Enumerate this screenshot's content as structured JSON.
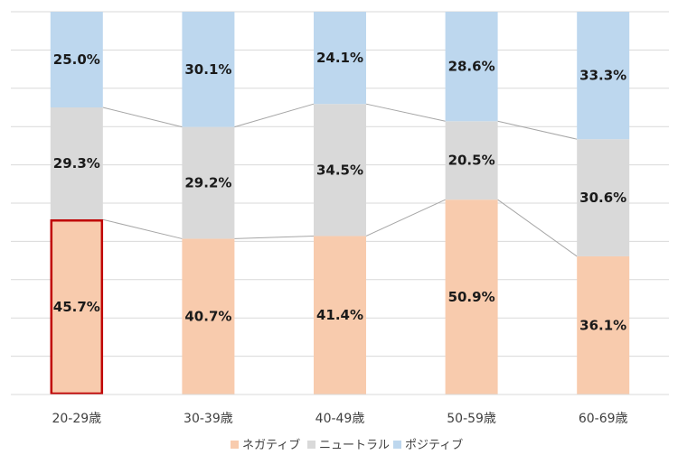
{
  "chart_data": {
    "type": "bar",
    "stacked": true,
    "percent": true,
    "categories": [
      "20-29歳",
      "30-39歳",
      "40-49歳",
      "50-59歳",
      "60-69歳"
    ],
    "series": [
      {
        "name": "ネガティブ",
        "color": "#f8cbad",
        "values": [
          45.7,
          40.7,
          41.4,
          50.9,
          36.1
        ],
        "labels": [
          "45.7%",
          "40.7%",
          "41.4%",
          "50.9%",
          "36.1%"
        ]
      },
      {
        "name": "ニュートラル",
        "color": "#d9d9d9",
        "values": [
          29.3,
          29.2,
          34.5,
          20.5,
          30.6
        ],
        "labels": [
          "29.3%",
          "29.2%",
          "34.5%",
          "20.5%",
          "30.6%"
        ]
      },
      {
        "name": "ポジティブ",
        "color": "#bdd7ee",
        "values": [
          25.0,
          30.1,
          24.1,
          28.6,
          33.3
        ],
        "labels": [
          "25.0%",
          "30.1%",
          "24.1%",
          "28.6%",
          "33.3%"
        ]
      }
    ],
    "ylim": [
      0,
      100
    ],
    "grid": true,
    "legend": "bottom",
    "highlight": {
      "category_index": 0,
      "series_index": 0,
      "color": "#c00000"
    },
    "connector_color": "#a6a6a6",
    "grid_color": "#d9d9d9"
  }
}
